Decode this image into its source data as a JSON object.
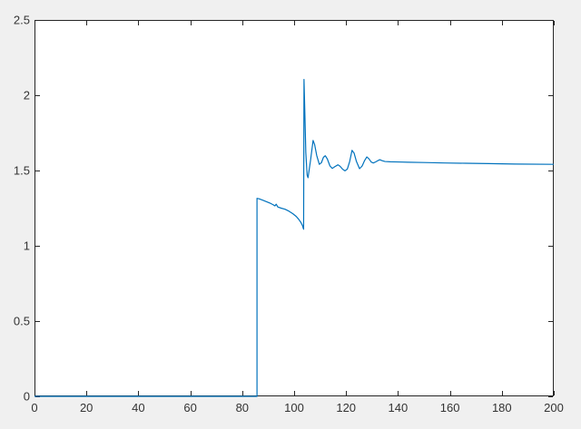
{
  "figure": {
    "background_color": "#f0f0f0",
    "plot_background_color": "#ffffff",
    "axis_color": "#262626",
    "tick_label_color": "#333333"
  },
  "chart_data": {
    "type": "line",
    "title": "",
    "xlabel": "",
    "ylabel": "",
    "xlim": [
      0,
      200
    ],
    "ylim": [
      0,
      2.5
    ],
    "grid": false,
    "box": true,
    "tick_direction": "in",
    "tick_length": 5,
    "legend_position": "none",
    "x_ticks": [
      0,
      20,
      40,
      60,
      80,
      100,
      120,
      140,
      160,
      180,
      200
    ],
    "x_tick_labels": [
      "0",
      "20",
      "40",
      "60",
      "80",
      "100",
      "120",
      "140",
      "160",
      "180",
      "200"
    ],
    "y_ticks": [
      0,
      0.5,
      1,
      1.5,
      2,
      2.5
    ],
    "y_tick_labels": [
      "0",
      "0.5",
      "1",
      "1.5",
      "2",
      "2.5"
    ],
    "series": [
      {
        "name": "response",
        "color": "#0072BD",
        "line_width": 1.2,
        "points": [
          [
            0,
            0
          ],
          [
            20,
            0
          ],
          [
            40,
            0
          ],
          [
            60,
            0
          ],
          [
            80,
            0
          ],
          [
            85.7,
            0
          ],
          [
            85.7,
            1.315
          ],
          [
            86.5,
            1.312
          ],
          [
            88,
            1.302
          ],
          [
            89.5,
            1.292
          ],
          [
            91,
            1.281
          ],
          [
            92,
            1.272
          ],
          [
            92.6,
            1.265
          ],
          [
            93.1,
            1.276
          ],
          [
            93.7,
            1.258
          ],
          [
            95,
            1.25
          ],
          [
            96.5,
            1.243
          ],
          [
            98,
            1.23
          ],
          [
            99.5,
            1.213
          ],
          [
            100.8,
            1.195
          ],
          [
            101.8,
            1.175
          ],
          [
            102.6,
            1.155
          ],
          [
            103.2,
            1.135
          ],
          [
            103.5,
            1.118
          ],
          [
            103.65,
            1.11
          ],
          [
            103.8,
            2.105
          ],
          [
            104.1,
            1.9
          ],
          [
            104.5,
            1.62
          ],
          [
            105,
            1.47
          ],
          [
            105.35,
            1.452
          ],
          [
            106.3,
            1.565
          ],
          [
            107.3,
            1.7
          ],
          [
            107.9,
            1.672
          ],
          [
            108.7,
            1.6
          ],
          [
            109.7,
            1.541
          ],
          [
            110.5,
            1.552
          ],
          [
            111.3,
            1.588
          ],
          [
            112,
            1.598
          ],
          [
            112.8,
            1.576
          ],
          [
            113.8,
            1.53
          ],
          [
            114.7,
            1.514
          ],
          [
            115.6,
            1.525
          ],
          [
            116.9,
            1.538
          ],
          [
            117.7,
            1.528
          ],
          [
            118.7,
            1.508
          ],
          [
            119.6,
            1.498
          ],
          [
            120.5,
            1.51
          ],
          [
            121.4,
            1.56
          ],
          [
            122.3,
            1.634
          ],
          [
            123.1,
            1.615
          ],
          [
            124,
            1.56
          ],
          [
            125.2,
            1.512
          ],
          [
            126.2,
            1.53
          ],
          [
            127.1,
            1.565
          ],
          [
            128,
            1.59
          ],
          [
            128.8,
            1.578
          ],
          [
            129.7,
            1.556
          ],
          [
            130.5,
            1.55
          ],
          [
            131.5,
            1.558
          ],
          [
            132.3,
            1.566
          ],
          [
            133,
            1.572
          ],
          [
            133.8,
            1.566
          ],
          [
            135,
            1.56
          ],
          [
            137,
            1.558
          ],
          [
            140,
            1.557
          ],
          [
            144,
            1.555
          ],
          [
            150,
            1.553
          ],
          [
            158,
            1.55
          ],
          [
            166,
            1.548
          ],
          [
            175,
            1.546
          ],
          [
            185,
            1.543
          ],
          [
            200,
            1.541
          ]
        ]
      }
    ]
  }
}
